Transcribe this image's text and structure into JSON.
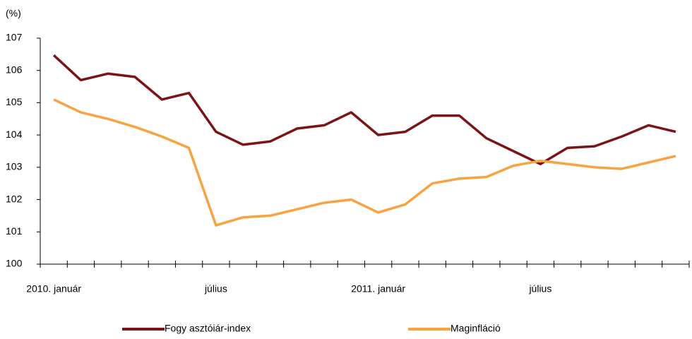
{
  "chart_data": {
    "type": "line",
    "y_unit": "(%)",
    "categories": [
      "2010. január",
      null,
      null,
      null,
      null,
      null,
      "július",
      null,
      null,
      null,
      null,
      null,
      "2011. január",
      null,
      null,
      null,
      null,
      null,
      "július",
      null,
      null,
      null,
      null,
      null
    ],
    "series": [
      {
        "name": "Fogy asztóiár-index",
        "color": "#7b1416",
        "values": [
          106.47,
          105.7,
          105.9,
          105.8,
          105.1,
          105.3,
          104.1,
          103.7,
          103.8,
          104.2,
          104.3,
          104.7,
          104.0,
          104.1,
          104.6,
          104.6,
          103.9,
          103.5,
          103.1,
          103.6,
          103.65,
          103.95,
          104.3,
          104.1
        ]
      },
      {
        "name": "Maginfláció",
        "color": "#f7a440",
        "values": [
          105.1,
          104.7,
          104.5,
          104.25,
          103.95,
          103.6,
          101.2,
          101.45,
          101.5,
          101.7,
          101.9,
          102.0,
          101.6,
          101.85,
          102.5,
          102.65,
          102.7,
          103.05,
          103.2,
          103.1,
          103.0,
          102.95,
          103.15,
          103.35
        ]
      }
    ],
    "ylim": [
      100,
      107
    ],
    "yticks": [
      100,
      101,
      102,
      103,
      104,
      105,
      106,
      107
    ],
    "grid": false
  }
}
